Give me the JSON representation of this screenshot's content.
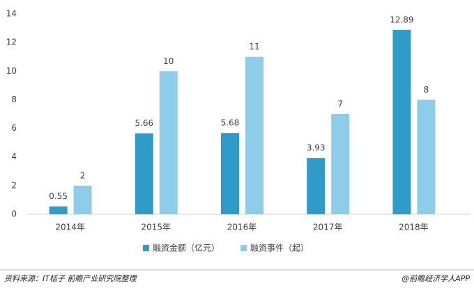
{
  "chart_data": {
    "type": "bar",
    "categories": [
      "2014年",
      "2015年",
      "2016年",
      "2017年",
      "2018年"
    ],
    "series": [
      {
        "name": "融资金额（亿元）",
        "color": "#2f9bc9",
        "values": [
          0.55,
          5.66,
          5.68,
          3.93,
          12.89
        ]
      },
      {
        "name": "融资事件（起）",
        "color": "#8ecdea",
        "values": [
          2,
          10,
          11,
          7,
          8
        ]
      }
    ],
    "ylim": [
      0,
      14
    ],
    "yticks": [
      0,
      2,
      4,
      6,
      8,
      10,
      12,
      14
    ],
    "grid": false,
    "legend": "bottom"
  },
  "footer": {
    "source": "资料来源：IT桔子 前瞻产业研究院整理",
    "brand": "@前瞻经济学人APP"
  }
}
